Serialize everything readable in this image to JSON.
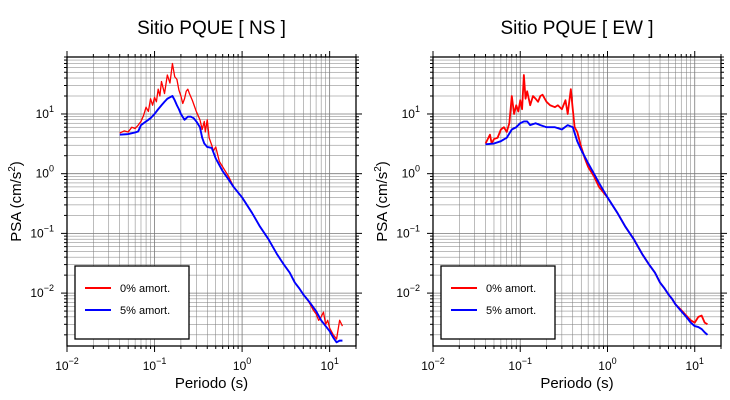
{
  "colors": {
    "undamped": "#ff0000",
    "damped": "#0000ff",
    "grid": "#7a7a7a"
  },
  "chart_data": [
    {
      "type": "line",
      "title": "Sitio PQUE [ NS ]",
      "xlabel": "Periodo (s)",
      "ylabel": "PSA (cm/s²)",
      "xscale": "log",
      "yscale": "log",
      "xlim": [
        0.01,
        20
      ],
      "ylim": [
        0.0013,
        90
      ],
      "grid": true,
      "legend_position": "bottom-left",
      "x_ticks": [
        {
          "v": 0.01,
          "base": "10",
          "exp": "−2"
        },
        {
          "v": 0.1,
          "base": "10",
          "exp": "−1"
        },
        {
          "v": 1,
          "base": "10",
          "exp": "0"
        },
        {
          "v": 10,
          "base": "10",
          "exp": "1"
        }
      ],
      "y_ticks": [
        {
          "v": 0.01,
          "base": "10",
          "exp": "−2"
        },
        {
          "v": 0.1,
          "base": "10",
          "exp": "−1"
        },
        {
          "v": 1,
          "base": "10",
          "exp": "0"
        },
        {
          "v": 10,
          "base": "10",
          "exp": "1"
        }
      ],
      "series": [
        {
          "name": "0% amort.",
          "color": "#ff0000",
          "points": [
            [
              0.04,
              4.8
            ],
            [
              0.045,
              5.2
            ],
            [
              0.05,
              5
            ],
            [
              0.055,
              6
            ],
            [
              0.06,
              5.7
            ],
            [
              0.065,
              6.5
            ],
            [
              0.07,
              7.5
            ],
            [
              0.075,
              9.5
            ],
            [
              0.08,
              13
            ],
            [
              0.085,
              11
            ],
            [
              0.09,
              18
            ],
            [
              0.095,
              14
            ],
            [
              0.1,
              19
            ],
            [
              0.105,
              16
            ],
            [
              0.11,
              26
            ],
            [
              0.115,
              20
            ],
            [
              0.12,
              35
            ],
            [
              0.13,
              22
            ],
            [
              0.14,
              45
            ],
            [
              0.15,
              33
            ],
            [
              0.16,
              70
            ],
            [
              0.17,
              42
            ],
            [
              0.18,
              38
            ],
            [
              0.19,
              25
            ],
            [
              0.2,
              20
            ],
            [
              0.21,
              15
            ],
            [
              0.22,
              18
            ],
            [
              0.23,
              24
            ],
            [
              0.24,
              26
            ],
            [
              0.25,
              22
            ],
            [
              0.27,
              17
            ],
            [
              0.3,
              11
            ],
            [
              0.33,
              8
            ],
            [
              0.35,
              5.5
            ],
            [
              0.37,
              7.5
            ],
            [
              0.38,
              5
            ],
            [
              0.4,
              8
            ],
            [
              0.42,
              4
            ],
            [
              0.45,
              3
            ],
            [
              0.47,
              2.4
            ],
            [
              0.5,
              2.8
            ],
            [
              0.55,
              1.6
            ],
            [
              0.6,
              1.3
            ],
            [
              0.7,
              0.9
            ],
            [
              0.8,
              0.6
            ],
            [
              1,
              0.4
            ],
            [
              1.3,
              0.22
            ],
            [
              1.6,
              0.13
            ],
            [
              2,
              0.08
            ],
            [
              2.5,
              0.045
            ],
            [
              3,
              0.03
            ],
            [
              3.5,
              0.022
            ],
            [
              4,
              0.015
            ],
            [
              4.5,
              0.012
            ],
            [
              5,
              0.0095
            ],
            [
              5.5,
              0.008
            ],
            [
              6,
              0.0065
            ],
            [
              6.5,
              0.0052
            ],
            [
              7,
              0.0045
            ],
            [
              7.5,
              0.0035
            ],
            [
              8,
              0.004
            ],
            [
              8.5,
              0.0048
            ],
            [
              9,
              0.003
            ],
            [
              9.5,
              0.0035
            ],
            [
              10,
              0.0026
            ],
            [
              11,
              0.002
            ],
            [
              12,
              0.0017
            ],
            [
              13,
              0.0035
            ],
            [
              14,
              0.0028
            ]
          ]
        },
        {
          "name": "5% amort.",
          "color": "#0000ff",
          "points": [
            [
              0.04,
              4.5
            ],
            [
              0.05,
              4.6
            ],
            [
              0.06,
              4.9
            ],
            [
              0.065,
              5.1
            ],
            [
              0.07,
              6.5
            ],
            [
              0.08,
              7.5
            ],
            [
              0.09,
              8.5
            ],
            [
              0.1,
              10
            ],
            [
              0.11,
              12
            ],
            [
              0.12,
              14
            ],
            [
              0.13,
              16
            ],
            [
              0.14,
              18
            ],
            [
              0.15,
              19
            ],
            [
              0.16,
              20
            ],
            [
              0.17,
              17
            ],
            [
              0.18,
              14
            ],
            [
              0.19,
              12
            ],
            [
              0.2,
              10
            ],
            [
              0.22,
              8
            ],
            [
              0.24,
              9
            ],
            [
              0.26,
              9
            ],
            [
              0.28,
              8.5
            ],
            [
              0.3,
              7.5
            ],
            [
              0.33,
              6
            ],
            [
              0.35,
              4
            ],
            [
              0.37,
              3.2
            ],
            [
              0.4,
              2.8
            ],
            [
              0.45,
              2.7
            ],
            [
              0.5,
              1.8
            ],
            [
              0.6,
              1.1
            ],
            [
              0.7,
              0.8
            ],
            [
              0.8,
              0.6
            ],
            [
              1,
              0.4
            ],
            [
              1.3,
              0.22
            ],
            [
              1.6,
              0.13
            ],
            [
              2,
              0.08
            ],
            [
              2.5,
              0.045
            ],
            [
              3,
              0.03
            ],
            [
              3.5,
              0.022
            ],
            [
              4,
              0.015
            ],
            [
              4.5,
              0.012
            ],
            [
              5,
              0.0095
            ],
            [
              5.5,
              0.008
            ],
            [
              6,
              0.0068
            ],
            [
              7,
              0.005
            ],
            [
              8,
              0.0035
            ],
            [
              9,
              0.0028
            ],
            [
              10,
              0.0023
            ],
            [
              11,
              0.0018
            ],
            [
              12,
              0.0015
            ],
            [
              13,
              0.0016
            ],
            [
              14,
              0.0016
            ]
          ]
        }
      ]
    },
    {
      "type": "line",
      "title": "Sitio PQUE [ EW ]",
      "xlabel": "Periodo (s)",
      "ylabel": "PSA (cm/s²)",
      "xscale": "log",
      "yscale": "log",
      "xlim": [
        0.01,
        20
      ],
      "ylim": [
        0.0013,
        90
      ],
      "grid": true,
      "legend_position": "bottom-left",
      "x_ticks": [
        {
          "v": 0.01,
          "base": "10",
          "exp": "−2"
        },
        {
          "v": 0.1,
          "base": "10",
          "exp": "−1"
        },
        {
          "v": 1,
          "base": "10",
          "exp": "0"
        },
        {
          "v": 10,
          "base": "10",
          "exp": "1"
        }
      ],
      "y_ticks": [
        {
          "v": 0.01,
          "base": "10",
          "exp": "−2"
        },
        {
          "v": 0.1,
          "base": "10",
          "exp": "−1"
        },
        {
          "v": 1,
          "base": "10",
          "exp": "0"
        },
        {
          "v": 10,
          "base": "10",
          "exp": "1"
        }
      ],
      "series": [
        {
          "name": "0% amort.",
          "color": "#ff0000",
          "points": [
            [
              0.04,
              3.2
            ],
            [
              0.045,
              4.5
            ],
            [
              0.047,
              3.2
            ],
            [
              0.05,
              3.8
            ],
            [
              0.055,
              4
            ],
            [
              0.06,
              5.5
            ],
            [
              0.065,
              6
            ],
            [
              0.07,
              5
            ],
            [
              0.075,
              7
            ],
            [
              0.08,
              20
            ],
            [
              0.085,
              10
            ],
            [
              0.09,
              14
            ],
            [
              0.095,
              11
            ],
            [
              0.1,
              17
            ],
            [
              0.105,
              12
            ],
            [
              0.11,
              45
            ],
            [
              0.115,
              18
            ],
            [
              0.12,
              24
            ],
            [
              0.13,
              14
            ],
            [
              0.14,
              20
            ],
            [
              0.15,
              18
            ],
            [
              0.16,
              16
            ],
            [
              0.17,
              20
            ],
            [
              0.18,
              21
            ],
            [
              0.2,
              16
            ],
            [
              0.22,
              14
            ],
            [
              0.25,
              13
            ],
            [
              0.27,
              14
            ],
            [
              0.3,
              12
            ],
            [
              0.33,
              17
            ],
            [
              0.35,
              10
            ],
            [
              0.38,
              26
            ],
            [
              0.4,
              12
            ],
            [
              0.42,
              6
            ],
            [
              0.45,
              5
            ],
            [
              0.5,
              2.8
            ],
            [
              0.55,
              1.8
            ],
            [
              0.6,
              1.3
            ],
            [
              0.7,
              0.9
            ],
            [
              0.8,
              0.6
            ],
            [
              1,
              0.4
            ],
            [
              1.3,
              0.22
            ],
            [
              1.6,
              0.13
            ],
            [
              2,
              0.08
            ],
            [
              2.5,
              0.045
            ],
            [
              3,
              0.03
            ],
            [
              3.5,
              0.022
            ],
            [
              4,
              0.015
            ],
            [
              4.5,
              0.012
            ],
            [
              5,
              0.0095
            ],
            [
              5.5,
              0.008
            ],
            [
              6,
              0.0065
            ],
            [
              7,
              0.0052
            ],
            [
              8,
              0.0042
            ],
            [
              9,
              0.0035
            ],
            [
              10,
              0.0032
            ],
            [
              11,
              0.004
            ],
            [
              12,
              0.0042
            ],
            [
              13,
              0.0032
            ],
            [
              14,
              0.003
            ]
          ]
        },
        {
          "name": "5% amort.",
          "color": "#0000ff",
          "points": [
            [
              0.04,
              3.1
            ],
            [
              0.05,
              3.2
            ],
            [
              0.06,
              3.5
            ],
            [
              0.07,
              4
            ],
            [
              0.08,
              5.5
            ],
            [
              0.09,
              6
            ],
            [
              0.1,
              7
            ],
            [
              0.11,
              7.5
            ],
            [
              0.12,
              7.5
            ],
            [
              0.13,
              6.5
            ],
            [
              0.15,
              7
            ],
            [
              0.17,
              6.5
            ],
            [
              0.2,
              6
            ],
            [
              0.25,
              6
            ],
            [
              0.3,
              5.5
            ],
            [
              0.35,
              6.5
            ],
            [
              0.4,
              6
            ],
            [
              0.45,
              3.5
            ],
            [
              0.5,
              2.5
            ],
            [
              0.6,
              1.5
            ],
            [
              0.7,
              1
            ],
            [
              0.8,
              0.7
            ],
            [
              1,
              0.4
            ],
            [
              1.3,
              0.22
            ],
            [
              1.6,
              0.13
            ],
            [
              2,
              0.08
            ],
            [
              2.5,
              0.045
            ],
            [
              3,
              0.03
            ],
            [
              3.5,
              0.022
            ],
            [
              4,
              0.015
            ],
            [
              4.5,
              0.012
            ],
            [
              5,
              0.0095
            ],
            [
              5.5,
              0.008
            ],
            [
              6,
              0.0065
            ],
            [
              7,
              0.005
            ],
            [
              8,
              0.004
            ],
            [
              9,
              0.0032
            ],
            [
              10,
              0.0028
            ],
            [
              11,
              0.0027
            ],
            [
              12,
              0.0025
            ],
            [
              13,
              0.0022
            ],
            [
              14,
              0.002
            ]
          ]
        }
      ]
    }
  ]
}
